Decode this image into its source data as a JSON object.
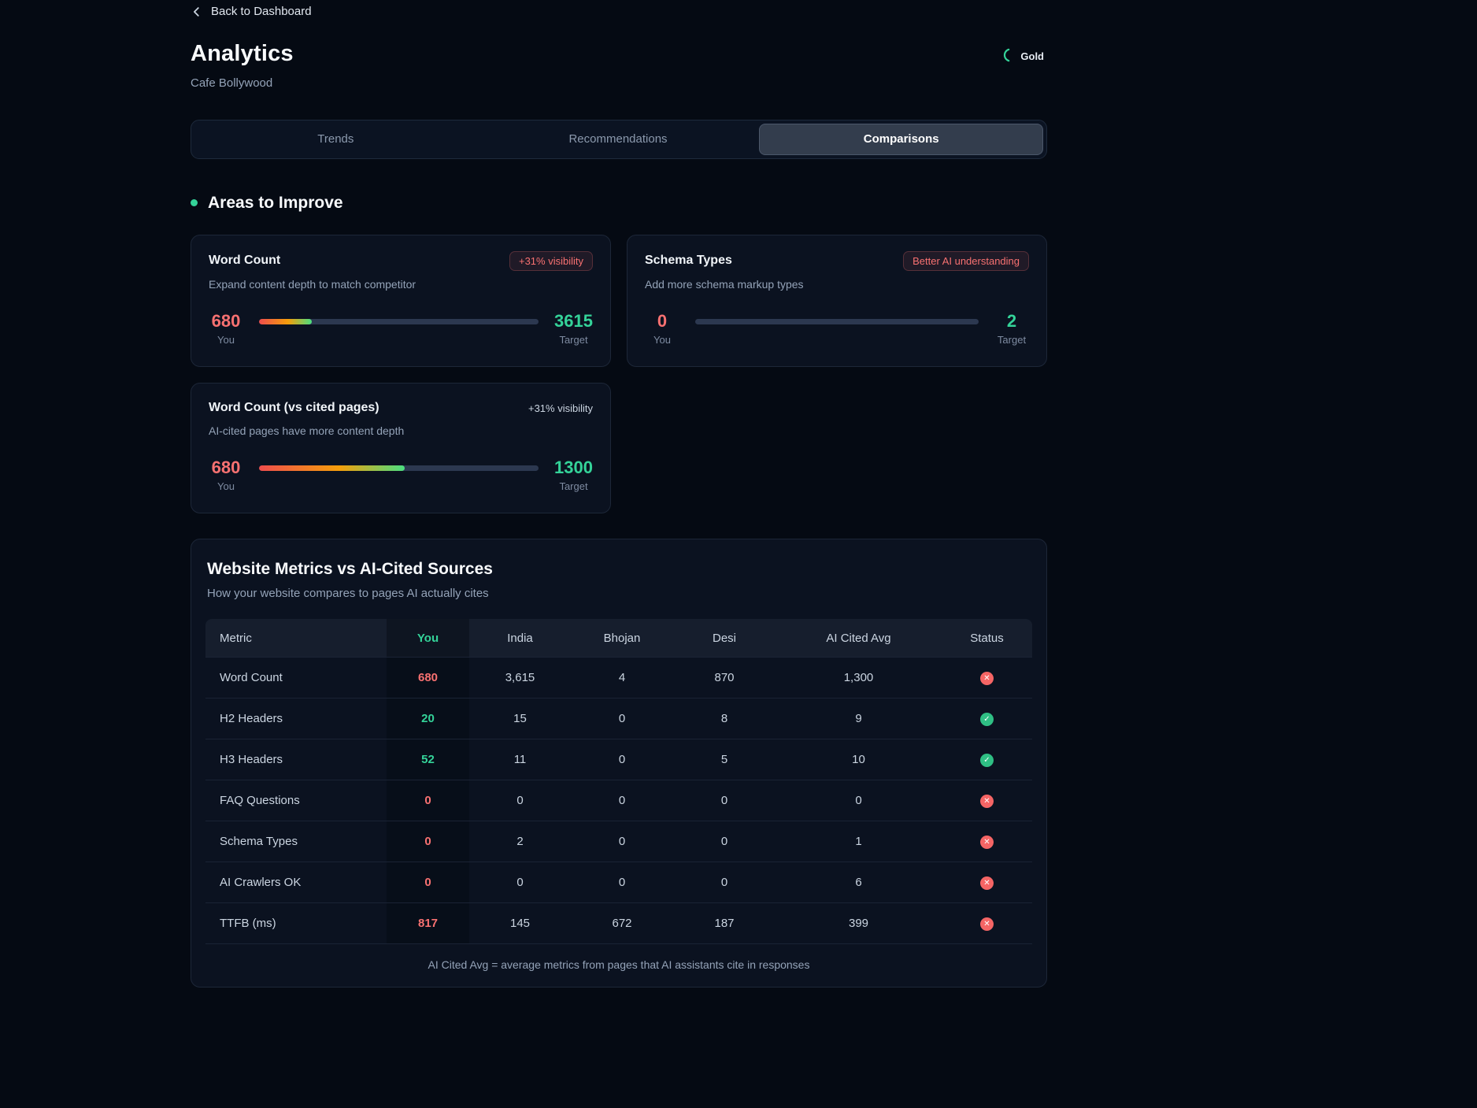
{
  "page": {
    "back_label": "Back to Dashboard",
    "title": "Analytics",
    "subtitle": "Cafe Bollywood",
    "plan_badge": "Gold"
  },
  "tabs": [
    {
      "label": "Trends",
      "active": false
    },
    {
      "label": "Recommendations",
      "active": false
    },
    {
      "label": "Comparisons",
      "active": true
    }
  ],
  "section": {
    "title": "Areas to Improve"
  },
  "cards": [
    {
      "title": "Word Count",
      "badge": "+31% visibility",
      "description": "Expand content depth to match competitor",
      "you_value": "680",
      "you_label": "You",
      "target_value": "3615",
      "target_label": "Target",
      "progress_percent": 19
    },
    {
      "title": "Schema Types",
      "badge": "Better AI understanding",
      "description": "Add more schema markup types",
      "you_value": "0",
      "you_label": "You",
      "target_value": "2",
      "target_label": "Target",
      "progress_percent": 0
    },
    {
      "title": "Word Count (vs cited pages)",
      "badge": "+31% visibility",
      "description": "AI-cited pages have more content depth",
      "you_value": "680",
      "you_label": "You",
      "target_value": "1300",
      "target_label": "Target",
      "progress_percent": 52
    }
  ],
  "comparison": {
    "title": "Website Metrics vs AI-Cited Sources",
    "subtitle": "How your website compares to pages AI actually cites",
    "columns": [
      "Metric",
      "You",
      "India",
      "Bhojan",
      "Desi",
      "AI Cited Avg",
      "Status"
    ],
    "rows": [
      {
        "metric": "Word Count",
        "you": "680",
        "you_color": "red",
        "india": "3,615",
        "bhojan": "4",
        "desi": "870",
        "avg": "1,300",
        "status": "fail"
      },
      {
        "metric": "H2 Headers",
        "you": "20",
        "you_color": "green",
        "india": "15",
        "bhojan": "0",
        "desi": "8",
        "avg": "9",
        "status": "pass"
      },
      {
        "metric": "H3 Headers",
        "you": "52",
        "you_color": "green",
        "india": "11",
        "bhojan": "0",
        "desi": "5",
        "avg": "10",
        "status": "pass"
      },
      {
        "metric": "FAQ Questions",
        "you": "0",
        "you_color": "red",
        "india": "0",
        "bhojan": "0",
        "desi": "0",
        "avg": "0",
        "status": "fail"
      },
      {
        "metric": "Schema Types",
        "you": "0",
        "you_color": "red",
        "india": "2",
        "bhojan": "0",
        "desi": "0",
        "avg": "1",
        "status": "fail"
      },
      {
        "metric": "AI Crawlers OK",
        "you": "0",
        "you_color": "red",
        "india": "0",
        "bhojan": "0",
        "desi": "0",
        "avg": "6",
        "status": "fail"
      },
      {
        "metric": "TTFB (ms)",
        "you": "817",
        "you_color": "red",
        "india": "145",
        "bhojan": "672",
        "desi": "187",
        "avg": "399",
        "status": "fail"
      }
    ],
    "footnote": "AI Cited Avg = average metrics from pages that AI assistants cite in responses"
  },
  "colors": {
    "background": "#050a13",
    "card": "#0b1220",
    "accent_red": "#f87171",
    "accent_green": "#34d399"
  }
}
